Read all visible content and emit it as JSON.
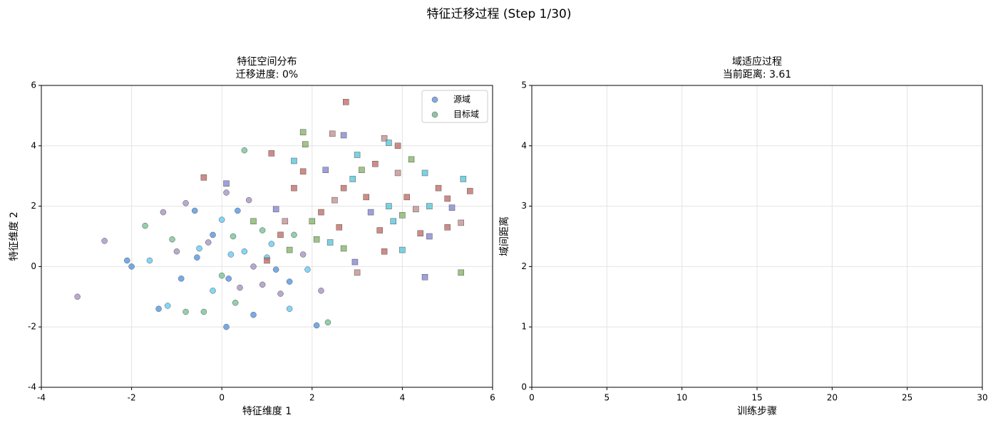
{
  "title": "特征迁移过程 (Step 1/30)",
  "chart_data": [
    {
      "type": "scatter",
      "title": "特征空间分布",
      "subtitle": "迁移进度: 0%",
      "xlabel": "特征维度 1",
      "ylabel": "特征维度 2",
      "xlim": [
        -4,
        6
      ],
      "ylim": [
        -4,
        6
      ],
      "xticks": [
        -4,
        -2,
        0,
        2,
        4,
        6
      ],
      "yticks": [
        -4,
        -2,
        0,
        2,
        4,
        6
      ],
      "grid": true,
      "legend": "upper right",
      "series": [
        {
          "name": "源域",
          "marker": "circle",
          "color": "#5b8fd6",
          "x": [
            -3.2,
            -2.6,
            -2.1,
            -2.0,
            -1.7,
            -1.6,
            -1.4,
            -1.3,
            -1.2,
            -1.0,
            -0.9,
            -0.8,
            -0.8,
            -0.6,
            -0.5,
            -0.4,
            -0.3,
            -0.2,
            0,
            0,
            0.1,
            0.1,
            0.2,
            0.3,
            0.35,
            0.4,
            0.5,
            0.5,
            0.6,
            0.7,
            0.9,
            0.9,
            1.0,
            1.2,
            1.3,
            1.5,
            1.5,
            1.6,
            1.8,
            1.9,
            2.1,
            2.2,
            2.35,
            -0.2,
            0.15,
            -1.1,
            0.7,
            1.1,
            -0.55,
            0.25
          ],
          "y": [
            -1.0,
            0.85,
            0.2,
            0,
            1.35,
            0.2,
            -1.4,
            1.8,
            -1.3,
            0.5,
            -0.4,
            -1.5,
            2.1,
            1.85,
            0.6,
            -1.5,
            0.8,
            1.05,
            1.55,
            -0.3,
            -2.0,
            2.45,
            0.4,
            -1.2,
            1.85,
            -0.7,
            3.85,
            0.5,
            2.2,
            -1.6,
            1.2,
            -0.6,
            0.3,
            -0.1,
            -0.9,
            -1.4,
            -0.5,
            1.05,
            0.4,
            -0.1,
            -1.95,
            -0.8,
            -1.85,
            -0.8,
            -0.4,
            0.9,
            0.0,
            0.75,
            0.3,
            1.0
          ],
          "colors": [
            "#a08cbf",
            "#a08cbf",
            "#4a8fe0",
            "#4a8fe0",
            "#6fbf8f",
            "#5bc8f5",
            "#4a8fe0",
            "#a08cbf",
            "#5bc8f5",
            "#a08cbf",
            "#4a8fe0",
            "#6fbf8f",
            "#a08cbf",
            "#4a8fe0",
            "#5bc8f5",
            "#6fbf8f",
            "#a08cbf",
            "#4a8fe0",
            "#5bc8f5",
            "#6fbf8f",
            "#4a8fe0",
            "#a08cbf",
            "#5bc8f5",
            "#6fbf8f",
            "#4a8fe0",
            "#a08cbf",
            "#6fbf8f",
            "#5bc8f5",
            "#a08cbf",
            "#4a8fe0",
            "#6fbf8f",
            "#a08cbf",
            "#5bc8f5",
            "#4a8fe0",
            "#a08cbf",
            "#5bc8f5",
            "#4a8fe0",
            "#6fbf8f",
            "#a08cbf",
            "#5bc8f5",
            "#4a8fe0",
            "#a08cbf",
            "#6fbf8f",
            "#5bc8f5",
            "#4a8fe0",
            "#6fbf8f",
            "#a08cbf",
            "#5bc8f5",
            "#4a8fe0",
            "#6fbf8f"
          ]
        },
        {
          "name": "目标域",
          "marker": "square",
          "color": "#6fae8f",
          "x": [
            1.1,
            1.6,
            1.8,
            1.85,
            2.45,
            2.7,
            2.75,
            3.0,
            3.6,
            3.7,
            3.9,
            4.2,
            4.5,
            5.35,
            5.5,
            5.0,
            5.1,
            4.8,
            4.6,
            4.5,
            5.3,
            5.0,
            5.3,
            4.0,
            3.6,
            3.0,
            2.95,
            2.7,
            2.4,
            1.5,
            1.3,
            1.0,
            1.2,
            1.4,
            1.6,
            1.8,
            2.0,
            2.2,
            2.3,
            2.5,
            2.7,
            2.9,
            3.1,
            3.2,
            3.3,
            3.4,
            3.5,
            3.7,
            3.9,
            4.0,
            4.1,
            4.3,
            4.4,
            4.6,
            -0.4,
            0.1,
            0.7,
            3.8,
            2.6,
            2.1
          ],
          "y": [
            3.75,
            3.5,
            4.45,
            4.05,
            4.4,
            4.35,
            5.45,
            3.7,
            4.25,
            4.1,
            4.0,
            3.55,
            3.1,
            2.9,
            2.5,
            2.25,
            1.95,
            2.6,
            1.0,
            -0.35,
            -0.2,
            1.3,
            1.45,
            0.55,
            0.5,
            -0.2,
            0.15,
            0.6,
            0.8,
            0.55,
            1.05,
            0.2,
            1.9,
            1.5,
            2.6,
            3.15,
            1.5,
            1.8,
            3.2,
            2.2,
            2.6,
            2.9,
            3.2,
            2.3,
            1.8,
            3.4,
            1.2,
            2.0,
            3.1,
            1.7,
            2.3,
            1.9,
            1.1,
            2.0,
            2.95,
            2.75,
            1.5,
            1.5,
            1.3,
            0.9
          ],
          "colors": [
            "#c0645d",
            "#4ec3d8",
            "#7fb060",
            "#7fb060",
            "#c08a8a",
            "#7f7fd0",
            "#c0645d",
            "#4ec3d8",
            "#c08a8a",
            "#4ec3d8",
            "#c0645d",
            "#7fb060",
            "#4ec3d8",
            "#4ec3d8",
            "#c0645d",
            "#c0645d",
            "#7f7fd0",
            "#c0645d",
            "#7f7fd0",
            "#7f7fd0",
            "#7fb060",
            "#c0645d",
            "#c08a8a",
            "#4ec3d8",
            "#c0645d",
            "#c08a8a",
            "#7f7fd0",
            "#7fb060",
            "#4ec3d8",
            "#7fb060",
            "#c0645d",
            "#c0645d",
            "#7f7fd0",
            "#c08a8a",
            "#c0645d",
            "#c0645d",
            "#7fb060",
            "#c0645d",
            "#7f7fd0",
            "#c08a8a",
            "#c0645d",
            "#4ec3d8",
            "#7fb060",
            "#c0645d",
            "#7f7fd0",
            "#c0645d",
            "#c0645d",
            "#4ec3d8",
            "#c08a8a",
            "#7fb060",
            "#c0645d",
            "#c08a8a",
            "#c0645d",
            "#4ec3d8",
            "#c0645d",
            "#7f7fd0",
            "#7fb060",
            "#4ec3d8",
            "#c0645d",
            "#7fb060"
          ]
        }
      ]
    },
    {
      "type": "line",
      "title": "域适应过程",
      "subtitle": "当前距离: 3.61",
      "xlabel": "训练步骤",
      "ylabel": "域间距离",
      "xlim": [
        0,
        30
      ],
      "ylim": [
        0,
        5
      ],
      "xticks": [
        0,
        5,
        10,
        15,
        20,
        25,
        30
      ],
      "yticks": [
        0,
        1,
        2,
        3,
        4,
        5
      ],
      "grid": true,
      "series": []
    }
  ]
}
